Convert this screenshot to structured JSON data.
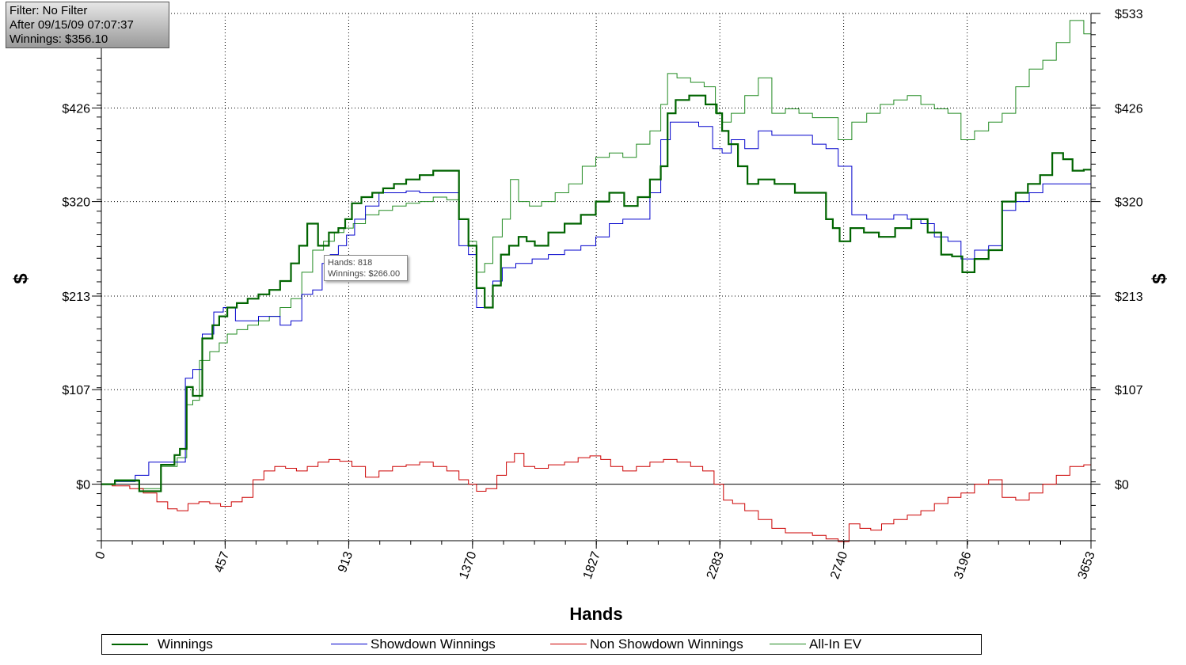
{
  "info_box": {
    "line1": "Filter: No Filter",
    "line2": "After 09/15/09 07:07:37",
    "line3": "Winnings: $356.10"
  },
  "tooltip": {
    "hands": "Hands: 818",
    "winnings": "Winnings: $266.00"
  },
  "chart_data": {
    "type": "line",
    "xlabel": "Hands",
    "ylabel": "$",
    "y2label": "$",
    "xlim": [
      0,
      3653
    ],
    "ylim": [
      -64,
      533
    ],
    "x_ticks": [
      0,
      457,
      913,
      1370,
      1827,
      2283,
      2740,
      3196,
      3653
    ],
    "y_tick_labels": [
      "$0",
      "$107",
      "$213",
      "$320",
      "$426",
      "$533"
    ],
    "y_tick_values": [
      0,
      107,
      213,
      320,
      426,
      533
    ],
    "grid": true,
    "legend_position": "bottom",
    "series": [
      {
        "name": "Winnings",
        "color": "#006400",
        "x": [
          0,
          100,
          180,
          260,
          280,
          300,
          330,
          345,
          400,
          420,
          450,
          480,
          520,
          560,
          600,
          640,
          680,
          720,
          740,
          780,
          820,
          860,
          890,
          910,
          940,
          980,
          1020,
          1060,
          1100,
          1150,
          1200,
          1250,
          1300,
          1340,
          1370,
          1400,
          1430,
          1460,
          1490,
          1520,
          1560,
          1580,
          1620,
          1680,
          1740,
          1800,
          1850,
          1900,
          1960,
          2000,
          2050,
          2080,
          2100,
          2140,
          2200,
          2260,
          2283,
          2300,
          2330,
          2370,
          2400,
          2450,
          2520,
          2600,
          2660,
          2690,
          2710,
          2740,
          2790,
          2840,
          2900,
          2960,
          3020,
          3080,
          3120,
          3160,
          3196,
          3250,
          3300,
          3350,
          3400,
          3440,
          3490,
          3530,
          3570,
          3600,
          3653
        ],
        "y": [
          0,
          4,
          -8,
          22,
          33,
          40,
          110,
          100,
          165,
          180,
          190,
          200,
          205,
          210,
          215,
          220,
          230,
          250,
          270,
          295,
          270,
          285,
          290,
          300,
          318,
          325,
          330,
          335,
          340,
          345,
          350,
          355,
          355,
          300,
          270,
          222,
          200,
          225,
          260,
          270,
          280,
          275,
          270,
          285,
          295,
          305,
          320,
          330,
          315,
          325,
          345,
          360,
          420,
          435,
          440,
          430,
          420,
          400,
          385,
          360,
          340,
          345,
          340,
          330,
          330,
          300,
          290,
          275,
          290,
          285,
          280,
          290,
          300,
          285,
          260,
          258,
          240,
          255,
          265,
          320,
          330,
          340,
          350,
          375,
          368,
          355,
          356.1
        ]
      },
      {
        "name": "Showdown Winnings",
        "color": "#0000cc",
        "x": [
          0,
          100,
          150,
          200,
          240,
          290,
          330,
          345,
          400,
          430,
          470,
          520,
          560,
          600,
          640,
          680,
          720,
          760,
          800,
          830,
          860,
          890,
          920,
          950,
          1000,
          1050,
          1100,
          1150,
          1200,
          1250,
          1300,
          1340,
          1370,
          1400,
          1430,
          1460,
          1500,
          1560,
          1620,
          1680,
          1740,
          1800,
          1850,
          1900,
          1950,
          2000,
          2050,
          2080,
          2120,
          2180,
          2230,
          2283,
          2300,
          2350,
          2400,
          2450,
          2500,
          2550,
          2600,
          2650,
          2700,
          2740,
          2800,
          2850,
          2900,
          2950,
          3000,
          3050,
          3100,
          3150,
          3196,
          3250,
          3300,
          3350,
          3400,
          3450,
          3500,
          3550,
          3600,
          3653
        ],
        "y": [
          0,
          3,
          10,
          25,
          25,
          25,
          120,
          130,
          170,
          195,
          200,
          185,
          185,
          190,
          190,
          180,
          185,
          215,
          220,
          250,
          260,
          270,
          282,
          300,
          315,
          330,
          330,
          332,
          330,
          330,
          330,
          270,
          260,
          200,
          200,
          230,
          245,
          250,
          255,
          260,
          265,
          270,
          280,
          295,
          300,
          300,
          330,
          390,
          410,
          410,
          405,
          380,
          375,
          390,
          380,
          400,
          395,
          395,
          395,
          385,
          380,
          360,
          305,
          300,
          300,
          305,
          300,
          295,
          280,
          275,
          255,
          265,
          270,
          310,
          320,
          330,
          340,
          340,
          340,
          340
        ]
      },
      {
        "name": "Non Showdown Winnings",
        "color": "#cc0000",
        "x": [
          0,
          80,
          130,
          180,
          230,
          260,
          300,
          340,
          380,
          420,
          460,
          500,
          540,
          580,
          620,
          660,
          700,
          740,
          780,
          820,
          860,
          900,
          950,
          1000,
          1050,
          1100,
          1150,
          1200,
          1250,
          1300,
          1340,
          1370,
          1400,
          1440,
          1480,
          1510,
          1540,
          1580,
          1620,
          1680,
          1740,
          1780,
          1827,
          1860,
          1900,
          1950,
          2000,
          2050,
          2100,
          2150,
          2200,
          2240,
          2283,
          2310,
          2350,
          2400,
          2450,
          2500,
          2550,
          2600,
          2650,
          2700,
          2740,
          2780,
          2820,
          2860,
          2900,
          2950,
          3000,
          3050,
          3100,
          3150,
          3196,
          3250,
          3300,
          3350,
          3400,
          3450,
          3500,
          3550,
          3600,
          3653
        ],
        "y": [
          0,
          -2,
          -5,
          -10,
          -20,
          -28,
          -30,
          -22,
          -20,
          -22,
          -25,
          -20,
          -15,
          5,
          15,
          20,
          18,
          15,
          20,
          25,
          28,
          26,
          20,
          8,
          15,
          20,
          22,
          25,
          20,
          15,
          5,
          0,
          -8,
          -5,
          10,
          25,
          35,
          20,
          18,
          22,
          25,
          30,
          32,
          28,
          20,
          15,
          20,
          25,
          28,
          25,
          20,
          15,
          0,
          -18,
          -22,
          -30,
          -40,
          -50,
          -55,
          -55,
          -58,
          -62,
          -65,
          -45,
          -50,
          -52,
          -45,
          -40,
          -35,
          -30,
          -22,
          -15,
          -10,
          0,
          5,
          -15,
          -18,
          -10,
          0,
          10,
          20,
          22
        ]
      },
      {
        "name": "All-In EV",
        "color": "#228b22",
        "x": [
          0,
          100,
          180,
          260,
          300,
          330,
          345,
          380,
          420,
          450,
          480,
          520,
          560,
          600,
          640,
          680,
          720,
          760,
          800,
          840,
          880,
          910,
          950,
          1000,
          1050,
          1100,
          1150,
          1200,
          1250,
          1300,
          1340,
          1370,
          1400,
          1430,
          1460,
          1500,
          1520,
          1560,
          1600,
          1650,
          1700,
          1750,
          1800,
          1850,
          1900,
          1950,
          2000,
          2050,
          2080,
          2100,
          2150,
          2200,
          2250,
          2283,
          2300,
          2350,
          2400,
          2450,
          2500,
          2550,
          2600,
          2650,
          2700,
          2740,
          2800,
          2850,
          2900,
          2950,
          3000,
          3050,
          3100,
          3150,
          3196,
          3250,
          3300,
          3350,
          3400,
          3450,
          3500,
          3550,
          3600,
          3653
        ],
        "y": [
          0,
          5,
          -5,
          20,
          30,
          90,
          95,
          140,
          150,
          160,
          170,
          175,
          180,
          185,
          190,
          200,
          210,
          240,
          265,
          275,
          285,
          290,
          295,
          305,
          310,
          315,
          318,
          320,
          325,
          322,
          300,
          275,
          240,
          250,
          280,
          300,
          345,
          320,
          315,
          320,
          330,
          340,
          360,
          370,
          375,
          370,
          385,
          400,
          430,
          465,
          460,
          455,
          450,
          420,
          410,
          420,
          440,
          460,
          420,
          425,
          420,
          415,
          415,
          390,
          410,
          420,
          430,
          435,
          440,
          430,
          425,
          420,
          390,
          400,
          410,
          420,
          450,
          470,
          480,
          500,
          525,
          510
        ]
      }
    ]
  },
  "legend": [
    {
      "label": "Winnings",
      "color": "#006400",
      "width": 2
    },
    {
      "label": "Showdown Winnings",
      "color": "#0000cc",
      "width": 1
    },
    {
      "label": "Non Showdown Winnings",
      "color": "#cc0000",
      "width": 1
    },
    {
      "label": "All-In EV",
      "color": "#228b22",
      "width": 1
    }
  ]
}
